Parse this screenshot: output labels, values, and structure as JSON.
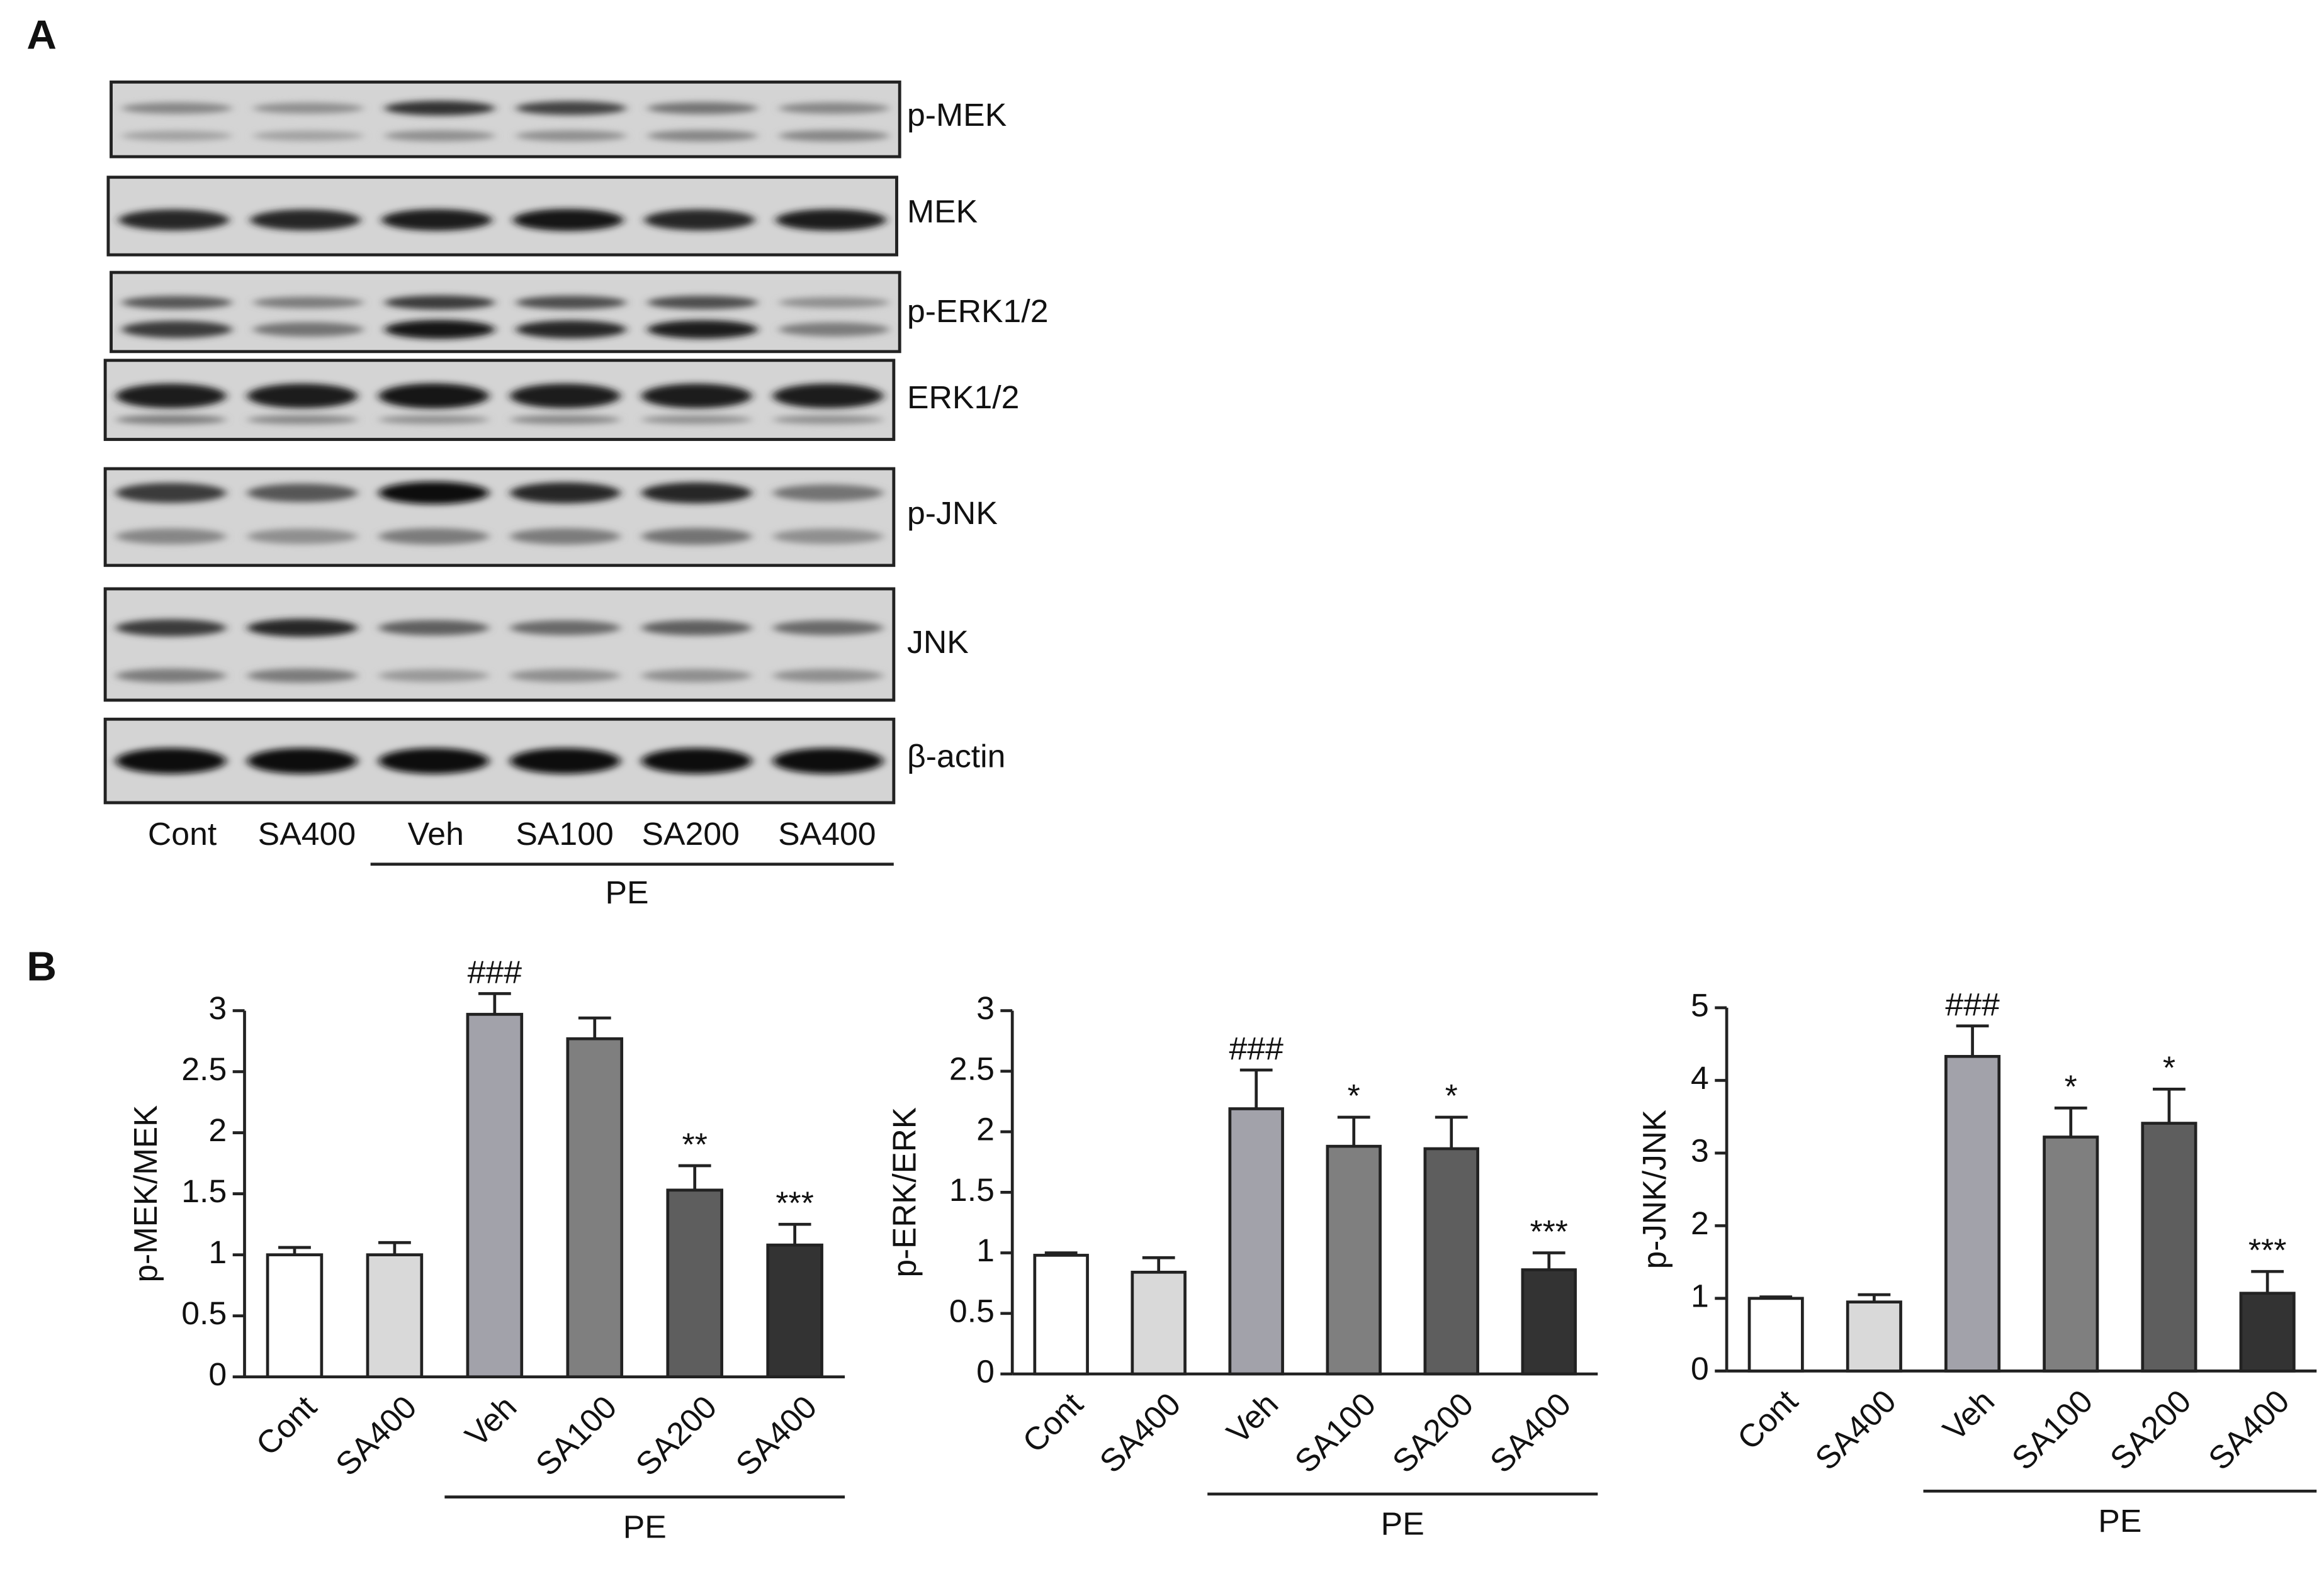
{
  "panel_a": {
    "label": "A",
    "rows": [
      "p-MEK",
      "MEK",
      "p-ERK1/2",
      "ERK1/2",
      "p-JNK",
      "JNK",
      "β-actin"
    ],
    "lanes": [
      "Cont",
      "SA400",
      "Veh",
      "SA100",
      "SA200",
      "SA400"
    ],
    "group_label": "PE"
  },
  "panel_b": {
    "label": "B"
  },
  "chart_data": [
    {
      "type": "bar",
      "ylabel": "p-MEK/MEK",
      "categories": [
        "Cont",
        "SA400",
        "Veh",
        "SA100",
        "SA200",
        "SA400"
      ],
      "values": [
        1.0,
        1.0,
        2.97,
        2.77,
        1.53,
        1.08
      ],
      "errors": [
        0.06,
        0.1,
        0.17,
        0.17,
        0.2,
        0.17
      ],
      "annotations": [
        null,
        null,
        "###",
        null,
        "**",
        "***"
      ],
      "colors": [
        "#ffffff",
        "#d9d9d9",
        "#a2a2aa",
        "#7f7f7f",
        "#5e5e5e",
        "#333333"
      ],
      "ylim": [
        0,
        3
      ],
      "yticks": [
        0,
        0.5,
        1,
        1.5,
        2,
        2.5,
        3
      ],
      "group_label": "PE"
    },
    {
      "type": "bar",
      "ylabel": "p-ERK/ERK",
      "categories": [
        "Cont",
        "SA400",
        "Veh",
        "SA100",
        "SA200",
        "SA400"
      ],
      "values": [
        0.98,
        0.84,
        2.19,
        1.88,
        1.86,
        0.86
      ],
      "errors": [
        0.02,
        0.12,
        0.32,
        0.24,
        0.26,
        0.14
      ],
      "annotations": [
        null,
        null,
        "###",
        "*",
        "*",
        "***"
      ],
      "colors": [
        "#ffffff",
        "#d9d9d9",
        "#a2a2aa",
        "#7f7f7f",
        "#5e5e5e",
        "#333333"
      ],
      "ylim": [
        0,
        3
      ],
      "yticks": [
        0,
        0.5,
        1,
        1.5,
        2,
        2.5,
        3
      ],
      "group_label": "PE"
    },
    {
      "type": "bar",
      "ylabel": "p-JNK/JNK",
      "categories": [
        "Cont",
        "SA400",
        "Veh",
        "SA100",
        "SA200",
        "SA400"
      ],
      "values": [
        1.0,
        0.95,
        4.33,
        3.22,
        3.41,
        1.07
      ],
      "errors": [
        0.02,
        0.1,
        0.42,
        0.4,
        0.47,
        0.3
      ],
      "annotations": [
        null,
        null,
        "###",
        "*",
        "*",
        "***"
      ],
      "colors": [
        "#ffffff",
        "#d9d9d9",
        "#a2a2aa",
        "#7f7f7f",
        "#5e5e5e",
        "#333333"
      ],
      "ylim": [
        0,
        5
      ],
      "yticks": [
        0,
        1,
        2,
        3,
        4,
        5
      ],
      "group_label": "PE"
    }
  ]
}
